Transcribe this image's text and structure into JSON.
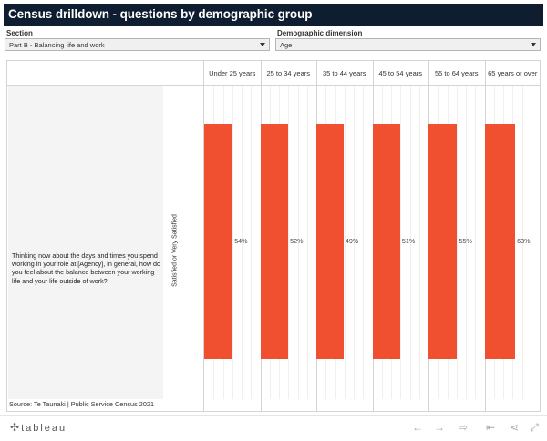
{
  "title": "Census drilldown - questions by demographic group",
  "filters": {
    "section": {
      "label": "Section",
      "value": "Part B - Balancing life and work"
    },
    "dimension": {
      "label": "Demographic dimension",
      "value": "Age"
    }
  },
  "question": "Thinking now about the days and times you spend working in your role at [Agency], in general, how do you feel about the balance between your working life and your life outside of work?",
  "row_label": "Satisfied or Very Satisfied",
  "chart_data": {
    "type": "bar",
    "categories": [
      "Under 25 years",
      "25 to 34 years",
      "35 to 44 years",
      "45 to 54 years",
      "55 to 64 years",
      "65 years or over"
    ],
    "values": [
      54,
      52,
      49,
      51,
      55,
      63
    ],
    "value_labels": [
      "54%",
      "52%",
      "49%",
      "51%",
      "55%",
      "63%"
    ],
    "bar_color": "#f05030"
  },
  "source": "Source:  Te Taunaki | Public Service Census 2021",
  "footer": {
    "logo": "tableau",
    "icons": [
      "undo-icon",
      "redo-icon",
      "revert-icon",
      "reset-icon",
      "share-icon",
      "fullscreen-icon"
    ]
  }
}
